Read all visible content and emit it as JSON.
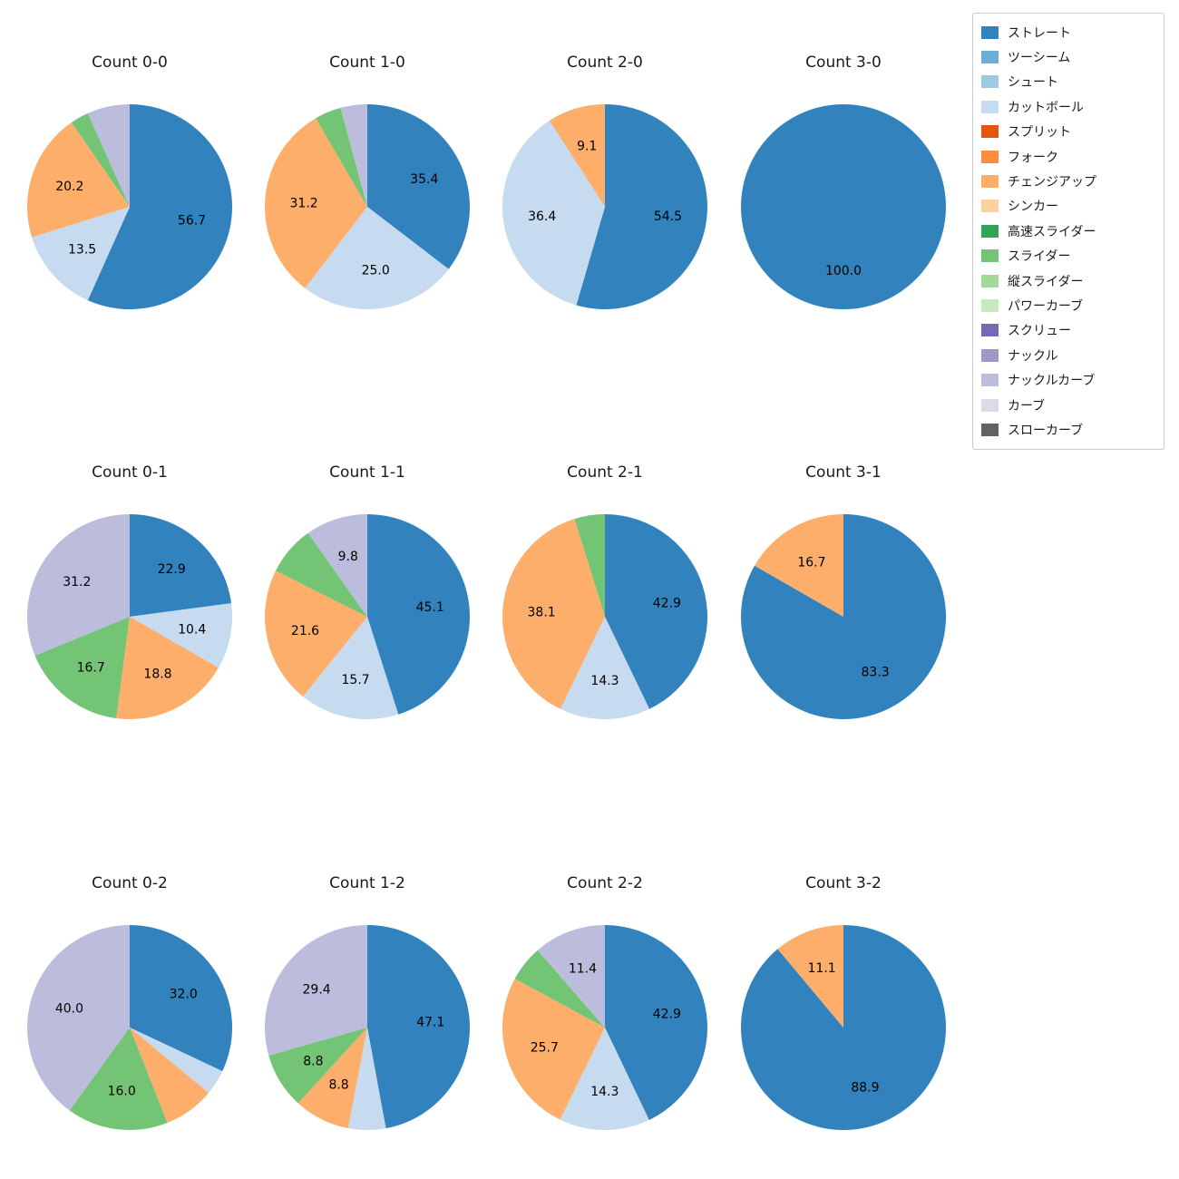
{
  "page": {
    "background": "#ffffff"
  },
  "legend": {
    "position": "upper right",
    "items": [
      {
        "label": "ストレート",
        "color": "#3182bd"
      },
      {
        "label": "ツーシーム",
        "color": "#6baed6"
      },
      {
        "label": "シュート",
        "color": "#9ecae1"
      },
      {
        "label": "カットボール",
        "color": "#c6dbef"
      },
      {
        "label": "スプリット",
        "color": "#e6550d"
      },
      {
        "label": "フォーク",
        "color": "#fd8d3c"
      },
      {
        "label": "チェンジアップ",
        "color": "#fdae6b"
      },
      {
        "label": "シンカー",
        "color": "#fdd0a2"
      },
      {
        "label": "高速スライダー",
        "color": "#31a354"
      },
      {
        "label": "スライダー",
        "color": "#74c476"
      },
      {
        "label": "縦スライダー",
        "color": "#a1d99b"
      },
      {
        "label": "パワーカーブ",
        "color": "#c7e9c0"
      },
      {
        "label": "スクリュー",
        "color": "#756bb1"
      },
      {
        "label": "ナックル",
        "color": "#9e9ac8"
      },
      {
        "label": "ナックルカーブ",
        "color": "#bcbddc"
      },
      {
        "label": "カーブ",
        "color": "#dadaeb"
      },
      {
        "label": "スローカーブ",
        "color": "#636363"
      }
    ]
  },
  "chart_data": [
    {
      "type": "pie",
      "title": "Count 0-0",
      "start_angle_deg": 90,
      "direction": "clockwise",
      "slices": [
        {
          "label": "ストレート",
          "value": 56.7,
          "pct_label": "56.7",
          "color": "#3182bd"
        },
        {
          "label": "カットボール",
          "value": 13.5,
          "pct_label": "13.5",
          "color": "#c6dbef"
        },
        {
          "label": "チェンジアップ",
          "value": 20.2,
          "pct_label": "20.2",
          "color": "#fdae6b"
        },
        {
          "label": "スライダー",
          "value": 2.9,
          "pct_label": null,
          "color": "#74c476"
        },
        {
          "label": "ナックルカーブ",
          "value": 6.7,
          "pct_label": null,
          "color": "#bcbddc"
        }
      ]
    },
    {
      "type": "pie",
      "title": "Count 1-0",
      "start_angle_deg": 90,
      "direction": "clockwise",
      "slices": [
        {
          "label": "ストレート",
          "value": 35.4,
          "pct_label": "35.4",
          "color": "#3182bd"
        },
        {
          "label": "カットボール",
          "value": 25.0,
          "pct_label": "25.0",
          "color": "#c6dbef"
        },
        {
          "label": "チェンジアップ",
          "value": 31.2,
          "pct_label": "31.2",
          "color": "#fdae6b"
        },
        {
          "label": "スライダー",
          "value": 4.2,
          "pct_label": null,
          "color": "#74c476"
        },
        {
          "label": "ナックルカーブ",
          "value": 4.2,
          "pct_label": null,
          "color": "#bcbddc"
        }
      ]
    },
    {
      "type": "pie",
      "title": "Count 2-0",
      "start_angle_deg": 90,
      "direction": "clockwise",
      "slices": [
        {
          "label": "ストレート",
          "value": 54.5,
          "pct_label": "54.5",
          "color": "#3182bd"
        },
        {
          "label": "カットボール",
          "value": 36.4,
          "pct_label": "36.4",
          "color": "#c6dbef"
        },
        {
          "label": "チェンジアップ",
          "value": 9.1,
          "pct_label": "9.1",
          "color": "#fdae6b"
        }
      ]
    },
    {
      "type": "pie",
      "title": "Count 3-0",
      "start_angle_deg": 90,
      "direction": "clockwise",
      "slices": [
        {
          "label": "ストレート",
          "value": 100.0,
          "pct_label": "100.0",
          "color": "#3182bd"
        }
      ]
    },
    {
      "type": "pie",
      "title": "Count 0-1",
      "start_angle_deg": 90,
      "direction": "clockwise",
      "slices": [
        {
          "label": "ストレート",
          "value": 22.9,
          "pct_label": "22.9",
          "color": "#3182bd"
        },
        {
          "label": "カットボール",
          "value": 10.4,
          "pct_label": "10.4",
          "color": "#c6dbef"
        },
        {
          "label": "チェンジアップ",
          "value": 18.8,
          "pct_label": "18.8",
          "color": "#fdae6b"
        },
        {
          "label": "スライダー",
          "value": 16.7,
          "pct_label": "16.7",
          "color": "#74c476"
        },
        {
          "label": "ナックルカーブ",
          "value": 31.2,
          "pct_label": "31.2",
          "color": "#bcbddc"
        }
      ]
    },
    {
      "type": "pie",
      "title": "Count 1-1",
      "start_angle_deg": 90,
      "direction": "clockwise",
      "slices": [
        {
          "label": "ストレート",
          "value": 45.1,
          "pct_label": "45.1",
          "color": "#3182bd"
        },
        {
          "label": "カットボール",
          "value": 15.7,
          "pct_label": "15.7",
          "color": "#c6dbef"
        },
        {
          "label": "チェンジアップ",
          "value": 21.6,
          "pct_label": "21.6",
          "color": "#fdae6b"
        },
        {
          "label": "スライダー",
          "value": 7.8,
          "pct_label": null,
          "color": "#74c476"
        },
        {
          "label": "ナックルカーブ",
          "value": 9.8,
          "pct_label": "9.8",
          "color": "#bcbddc"
        }
      ]
    },
    {
      "type": "pie",
      "title": "Count 2-1",
      "start_angle_deg": 90,
      "direction": "clockwise",
      "slices": [
        {
          "label": "ストレート",
          "value": 42.9,
          "pct_label": "42.9",
          "color": "#3182bd"
        },
        {
          "label": "カットボール",
          "value": 14.3,
          "pct_label": "14.3",
          "color": "#c6dbef"
        },
        {
          "label": "チェンジアップ",
          "value": 38.1,
          "pct_label": "38.1",
          "color": "#fdae6b"
        },
        {
          "label": "スライダー",
          "value": 4.8,
          "pct_label": null,
          "color": "#74c476"
        }
      ]
    },
    {
      "type": "pie",
      "title": "Count 3-1",
      "start_angle_deg": 90,
      "direction": "clockwise",
      "slices": [
        {
          "label": "ストレート",
          "value": 83.3,
          "pct_label": "83.3",
          "color": "#3182bd"
        },
        {
          "label": "チェンジアップ",
          "value": 16.7,
          "pct_label": "16.7",
          "color": "#fdae6b"
        }
      ]
    },
    {
      "type": "pie",
      "title": "Count 0-2",
      "start_angle_deg": 90,
      "direction": "clockwise",
      "slices": [
        {
          "label": "ストレート",
          "value": 32.0,
          "pct_label": "32.0",
          "color": "#3182bd"
        },
        {
          "label": "カットボール",
          "value": 4.0,
          "pct_label": null,
          "color": "#c6dbef"
        },
        {
          "label": "チェンジアップ",
          "value": 8.0,
          "pct_label": null,
          "color": "#fdae6b"
        },
        {
          "label": "スライダー",
          "value": 16.0,
          "pct_label": "16.0",
          "color": "#74c476"
        },
        {
          "label": "ナックルカーブ",
          "value": 40.0,
          "pct_label": "40.0",
          "color": "#bcbddc"
        }
      ]
    },
    {
      "type": "pie",
      "title": "Count 1-2",
      "start_angle_deg": 90,
      "direction": "clockwise",
      "slices": [
        {
          "label": "ストレート",
          "value": 47.1,
          "pct_label": "47.1",
          "color": "#3182bd"
        },
        {
          "label": "カットボール",
          "value": 5.9,
          "pct_label": null,
          "color": "#c6dbef"
        },
        {
          "label": "チェンジアップ",
          "value": 8.8,
          "pct_label": "8.8",
          "color": "#fdae6b"
        },
        {
          "label": "スライダー",
          "value": 8.8,
          "pct_label": "8.8",
          "color": "#74c476"
        },
        {
          "label": "ナックルカーブ",
          "value": 29.4,
          "pct_label": "29.4",
          "color": "#bcbddc"
        }
      ]
    },
    {
      "type": "pie",
      "title": "Count 2-2",
      "start_angle_deg": 90,
      "direction": "clockwise",
      "slices": [
        {
          "label": "ストレート",
          "value": 42.9,
          "pct_label": "42.9",
          "color": "#3182bd"
        },
        {
          "label": "カットボール",
          "value": 14.3,
          "pct_label": "14.3",
          "color": "#c6dbef"
        },
        {
          "label": "チェンジアップ",
          "value": 25.7,
          "pct_label": "25.7",
          "color": "#fdae6b"
        },
        {
          "label": "スライダー",
          "value": 5.7,
          "pct_label": null,
          "color": "#74c476"
        },
        {
          "label": "ナックルカーブ",
          "value": 11.4,
          "pct_label": "11.4",
          "color": "#bcbddc"
        }
      ]
    },
    {
      "type": "pie",
      "title": "Count 3-2",
      "start_angle_deg": 90,
      "direction": "clockwise",
      "slices": [
        {
          "label": "ストレート",
          "value": 88.9,
          "pct_label": "88.9",
          "color": "#3182bd"
        },
        {
          "label": "チェンジアップ",
          "value": 11.1,
          "pct_label": "11.1",
          "color": "#fdae6b"
        }
      ]
    }
  ]
}
